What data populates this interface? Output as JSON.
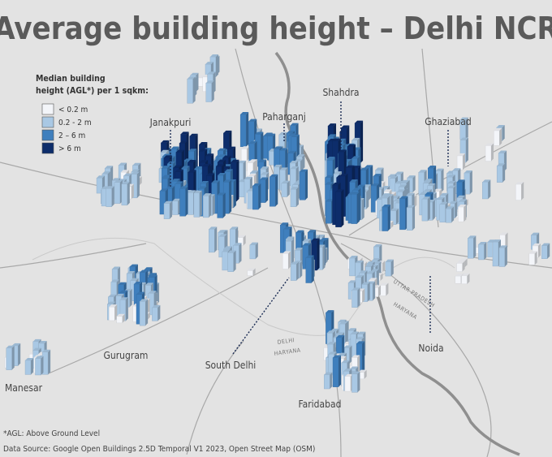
{
  "title": "Average building height – Delhi NCR",
  "legend": {
    "title": [
      "Median building",
      "height (AGL*) per 1 sqkm:"
    ],
    "items": [
      {
        "label": "< 0.2 m",
        "color": "#f3f5f9"
      },
      {
        "label": "0.2 - 2 m",
        "color": "#a9c8e4"
      },
      {
        "label": "2 – 6 m",
        "color": "#3f7fbd"
      },
      {
        "label": "> 6 m",
        "color": "#0d2d6b"
      }
    ]
  },
  "places": [
    "Janakpuri",
    "Paharganj",
    "Shahdra",
    "Ghaziabad",
    "Noida",
    "South Delhi",
    "Gurugram",
    "Manesar",
    "Faridabad"
  ],
  "borders": [
    "DELHI",
    "HARYANA",
    "UTTAR PRADESH",
    "HARYANA"
  ],
  "notes": [
    "*AGL: Above Ground Level",
    "Data Source: Google Open Buildings 2.5D Temporal V1 2023, Open Street Map (OSM)"
  ]
}
